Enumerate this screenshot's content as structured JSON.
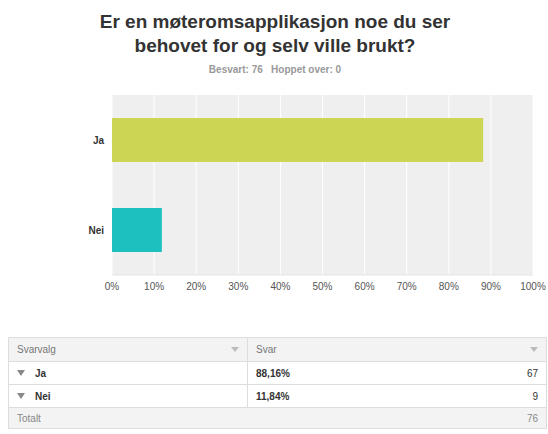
{
  "chart_data": {
    "type": "bar",
    "title": "Er en møteromsapplikasjon noe du ser behovet for og selv ville brukt?",
    "subtitle": "Besvart: 76   Hoppet over: 0",
    "orientation": "horizontal",
    "categories": [
      "Ja",
      "Nei"
    ],
    "values": [
      88.16,
      11.84
    ],
    "colors": [
      "#cdd654",
      "#1dbfbf"
    ],
    "xlim": [
      0,
      100
    ],
    "xticks": [
      {
        "value": 0,
        "label": "0%"
      },
      {
        "value": 10,
        "label": "10%"
      },
      {
        "value": 20,
        "label": "20%"
      },
      {
        "value": 30,
        "label": "30%"
      },
      {
        "value": 40,
        "label": "40%"
      },
      {
        "value": 50,
        "label": "50%"
      },
      {
        "value": 60,
        "label": "60%"
      },
      {
        "value": 70,
        "label": "70%"
      },
      {
        "value": 80,
        "label": "80%"
      },
      {
        "value": 90,
        "label": "90%"
      },
      {
        "value": 100,
        "label": "100%"
      }
    ],
    "grid": true
  },
  "table": {
    "columns": [
      "Svarvalg",
      "Svar"
    ],
    "rows": [
      [
        "Ja",
        "88,16%",
        67
      ],
      [
        "Nei",
        "11,84%",
        9
      ]
    ],
    "total": [
      "Totalt",
      76
    ]
  }
}
